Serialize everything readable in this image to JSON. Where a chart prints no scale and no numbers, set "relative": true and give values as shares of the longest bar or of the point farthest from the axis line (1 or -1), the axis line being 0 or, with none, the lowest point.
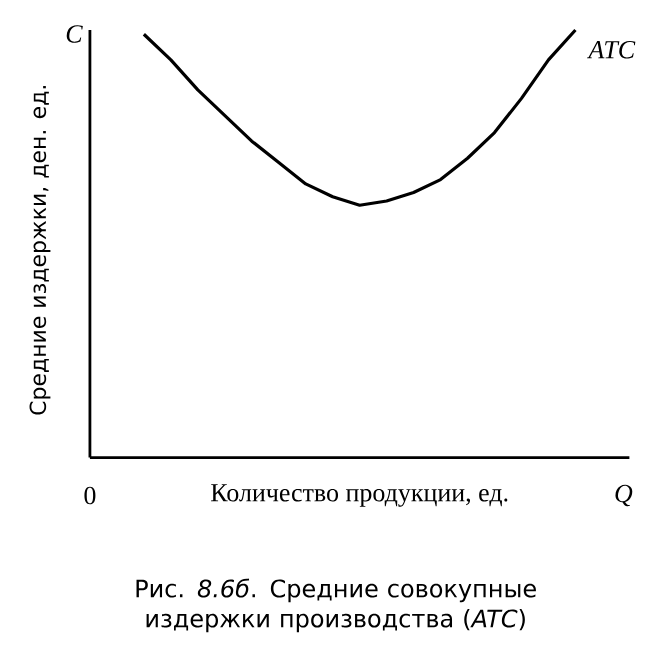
{
  "chart_data": {
    "type": "line",
    "relative": true,
    "xlabel": "Количество продукции, ед.",
    "ylabel": "Средние издержки, ден. ед.",
    "categories": [
      null,
      null,
      null,
      null,
      null,
      null,
      null,
      null,
      null,
      null,
      null,
      null,
      null,
      null,
      null,
      null,
      null,
      null,
      null,
      null,
      null
    ],
    "series": [
      {
        "name": "ATC",
        "color": "#000000",
        "values": [
          null,
          null,
          0.99,
          0.93,
          0.86,
          0.8,
          0.74,
          0.69,
          0.64,
          0.61,
          0.59,
          0.6,
          0.62,
          0.65,
          0.7,
          0.76,
          0.84,
          0.93,
          1,
          null,
          null
        ]
      }
    ],
    "annotations": [
      "C",
      "0",
      "Q",
      "Рис. *8.6б*. Средние совокупные издержки производства (*ATC*)"
    ],
    "marker": "none",
    "line_style": "solid",
    "legend": false
  }
}
